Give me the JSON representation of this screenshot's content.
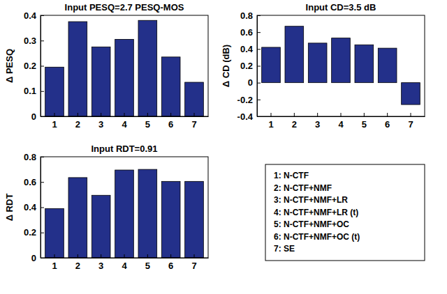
{
  "chart_data": [
    {
      "type": "bar",
      "title": "Input PESQ=2.7 PESQ-MOS",
      "y_label": "Δ PESQ",
      "categories": [
        "1",
        "2",
        "3",
        "4",
        "5",
        "6",
        "7"
      ],
      "values": [
        0.195,
        0.375,
        0.275,
        0.305,
        0.38,
        0.235,
        0.135
      ],
      "color": "#23308a",
      "ylim": [
        0,
        0.4
      ],
      "yticks": [
        0,
        0.1,
        0.2,
        0.3,
        0.4
      ],
      "grid": false
    },
    {
      "type": "bar",
      "title": "Input CD=3.5 dB",
      "y_label": "Δ CD (dB)",
      "categories": [
        "1",
        "2",
        "3",
        "4",
        "5",
        "6",
        "7"
      ],
      "values": [
        0.42,
        0.67,
        0.47,
        0.53,
        0.45,
        0.41,
        -0.26
      ],
      "color": "#23308a",
      "ylim": [
        -0.4,
        0.8
      ],
      "yticks": [
        -0.4,
        -0.2,
        0,
        0.2,
        0.4,
        0.6,
        0.8
      ],
      "grid": false
    },
    {
      "type": "bar",
      "title": "Input RDT=0.91",
      "y_label": "Δ RDT",
      "categories": [
        "1",
        "2",
        "3",
        "4",
        "5",
        "6",
        "7"
      ],
      "values": [
        0.39,
        0.635,
        0.495,
        0.695,
        0.7,
        0.605,
        0.605
      ],
      "color": "#23308a",
      "ylim": [
        0,
        0.8
      ],
      "yticks": [
        0,
        0.2,
        0.4,
        0.6,
        0.8
      ],
      "grid": false
    }
  ],
  "legend_box": {
    "entries": [
      "1: N-CTF",
      "2: N-CTF+NMF",
      "3: N-CTF+NMF+LR",
      "4: N-CTF+NMF+LR (t)",
      "5: N-CTF+NMF+OC",
      "6: N-CTF+NMF+OC (t)",
      "7: SE"
    ]
  }
}
